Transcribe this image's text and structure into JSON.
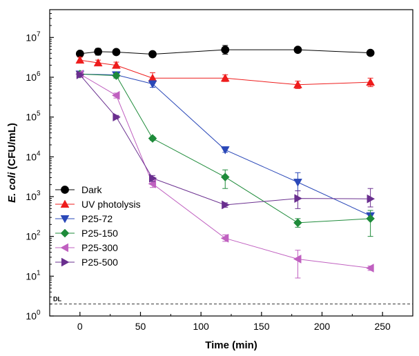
{
  "chart_data": {
    "type": "scatter",
    "xlabel": "Time (min)",
    "ylabel_prefix": "E. coli",
    "ylabel_suffix": " (CFU/mL)",
    "xlim": [
      -25,
      275
    ],
    "ylim": [
      1,
      50000000
    ],
    "yscale": "log",
    "x_ticks": [
      {
        "value": 0,
        "label": "0"
      },
      {
        "value": 50,
        "label": "50"
      },
      {
        "value": 100,
        "label": "100"
      },
      {
        "value": 150,
        "label": "150"
      },
      {
        "value": 200,
        "label": "200"
      },
      {
        "value": 250,
        "label": "250"
      }
    ],
    "y_ticks": [
      {
        "value": 1,
        "base": "10",
        "exp": "0"
      },
      {
        "value": 10,
        "base": "10",
        "exp": "1"
      },
      {
        "value": 100,
        "base": "10",
        "exp": "2"
      },
      {
        "value": 1000,
        "base": "10",
        "exp": "3"
      },
      {
        "value": 10000,
        "base": "10",
        "exp": "4"
      },
      {
        "value": 100000,
        "base": "10",
        "exp": "5"
      },
      {
        "value": 1000000,
        "base": "10",
        "exp": "6"
      },
      {
        "value": 10000000,
        "base": "10",
        "exp": "7"
      }
    ],
    "detection_limit": {
      "value": 2,
      "label": "DL",
      "color": "#333333"
    },
    "legend_position": "lower-left",
    "series": [
      {
        "name": "Dark",
        "color": "#000000",
        "marker": "circle",
        "points": [
          {
            "x": 0,
            "y": 3900000,
            "lo": 3400000,
            "hi": 4400000
          },
          {
            "x": 15,
            "y": 4400000,
            "lo": 3600000,
            "hi": 5300000
          },
          {
            "x": 30,
            "y": 4300000,
            "lo": 3700000,
            "hi": 5000000
          },
          {
            "x": 60,
            "y": 3800000,
            "lo": 3400000,
            "hi": 4200000
          },
          {
            "x": 120,
            "y": 4900000,
            "lo": 3800000,
            "hi": 6300000
          },
          {
            "x": 180,
            "y": 4900000,
            "lo": 4500000,
            "hi": 5300000
          },
          {
            "x": 240,
            "y": 4100000,
            "lo": 3700000,
            "hi": 4500000
          }
        ]
      },
      {
        "name": "UV photolysis",
        "color": "#ee1c1c",
        "marker": "triangle-up",
        "points": [
          {
            "x": 0,
            "y": 2700000,
            "lo": 2300000,
            "hi": 3200000
          },
          {
            "x": 15,
            "y": 2300000,
            "lo": 2000000,
            "hi": 2700000
          },
          {
            "x": 30,
            "y": 2000000,
            "lo": 1700000,
            "hi": 2400000
          },
          {
            "x": 60,
            "y": 950000,
            "lo": 700000,
            "hi": 1300000
          },
          {
            "x": 120,
            "y": 950000,
            "lo": 780000,
            "hi": 1150000
          },
          {
            "x": 180,
            "y": 650000,
            "lo": 520000,
            "hi": 800000
          },
          {
            "x": 240,
            "y": 750000,
            "lo": 580000,
            "hi": 950000
          }
        ]
      },
      {
        "name": "P25-72",
        "color": "#2a48b8",
        "marker": "triangle-down",
        "points": [
          {
            "x": 0,
            "y": 1200000,
            "lo": 1050000,
            "hi": 1350000
          },
          {
            "x": 30,
            "y": 1150000,
            "lo": 1000000,
            "hi": 1300000
          },
          {
            "x": 60,
            "y": 680000,
            "lo": 560000,
            "hi": 820000
          },
          {
            "x": 120,
            "y": 15000,
            "lo": 13000,
            "hi": 17000
          },
          {
            "x": 180,
            "y": 2300,
            "lo": 1400,
            "hi": 4000
          },
          {
            "x": 240,
            "y": 330,
            "lo": 280,
            "hi": 390
          }
        ]
      },
      {
        "name": "P25-150",
        "color": "#1e8b3a",
        "marker": "diamond",
        "points": [
          {
            "x": 0,
            "y": 1200000,
            "lo": 1050000,
            "hi": 1350000
          },
          {
            "x": 30,
            "y": 1100000,
            "lo": 950000,
            "hi": 1250000
          },
          {
            "x": 60,
            "y": 29000,
            "lo": 26000,
            "hi": 32000
          },
          {
            "x": 120,
            "y": 3100,
            "lo": 1600,
            "hi": 4700
          },
          {
            "x": 180,
            "y": 220,
            "lo": 170,
            "hi": 280
          },
          {
            "x": 240,
            "y": 280,
            "lo": 100,
            "hi": 450
          }
        ]
      },
      {
        "name": "P25-300",
        "color": "#c060c0",
        "marker": "triangle-left",
        "points": [
          {
            "x": 0,
            "y": 1200000,
            "lo": 1050000,
            "hi": 1350000
          },
          {
            "x": 30,
            "y": 350000,
            "lo": 300000,
            "hi": 400000
          },
          {
            "x": 60,
            "y": 2100,
            "lo": 1700,
            "hi": 2600
          },
          {
            "x": 120,
            "y": 90,
            "lo": 75,
            "hi": 110
          },
          {
            "x": 180,
            "y": 27,
            "lo": 9,
            "hi": 45
          },
          {
            "x": 240,
            "y": 16,
            "lo": 14,
            "hi": 18
          }
        ]
      },
      {
        "name": "P25-500",
        "color": "#6a2f8f",
        "marker": "triangle-right",
        "points": [
          {
            "x": 0,
            "y": 1150000,
            "lo": 1000000,
            "hi": 1300000
          },
          {
            "x": 30,
            "y": 100000,
            "lo": 90000,
            "hi": 110000
          },
          {
            "x": 60,
            "y": 2900,
            "lo": 2400,
            "hi": 3400
          },
          {
            "x": 120,
            "y": 620,
            "lo": 540,
            "hi": 700
          },
          {
            "x": 180,
            "y": 900,
            "lo": 500,
            "hi": 1400
          },
          {
            "x": 240,
            "y": 880,
            "lo": 550,
            "hi": 1600
          }
        ]
      }
    ]
  }
}
